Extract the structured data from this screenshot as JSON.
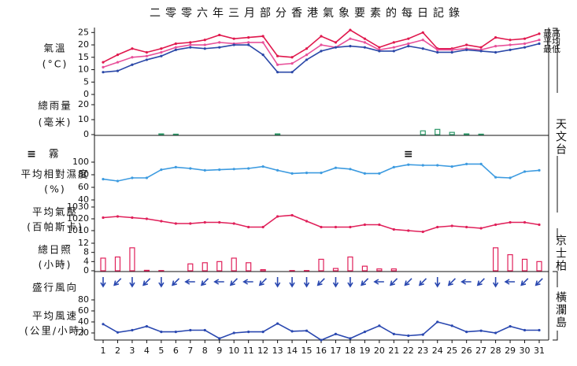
{
  "chart_data": {
    "type": "multi-panel",
    "title": "二零零六年三月部分香港氣象要素的每日記錄",
    "x": [
      1,
      2,
      3,
      4,
      5,
      6,
      7,
      8,
      9,
      10,
      11,
      12,
      13,
      14,
      15,
      16,
      17,
      18,
      19,
      20,
      21,
      22,
      23,
      24,
      25,
      26,
      27,
      28,
      29,
      30,
      31
    ],
    "stations": [
      "天文台",
      "京士柏",
      "橫瀾島"
    ],
    "panels": [
      {
        "type": "line",
        "label": [
          "氣溫",
          "(°C)"
        ],
        "ylim": [
          0,
          27
        ],
        "yticks": [
          0,
          5,
          10,
          15,
          20,
          25
        ],
        "series": [
          {
            "name": "最高",
            "color": "#e0184d",
            "values": [
              13,
              16,
              18.5,
              17,
              18.5,
              20.5,
              21,
              22,
              24,
              22.5,
              23,
              23.5,
              15.5,
              15,
              18.5,
              23.5,
              21,
              26,
              22.5,
              19,
              21,
              22.5,
              25,
              18.5,
              18.5,
              20,
              19,
              23,
              22,
              22.5,
              24.5
            ]
          },
          {
            "name": "平均",
            "color": "#e8509a",
            "values": [
              11,
              13,
              15,
              15.5,
              17,
              19,
              20,
              20,
              21,
              20.5,
              21,
              21,
              12,
              12.5,
              16,
              20,
              19,
              22.5,
              21,
              18,
              19,
              20.5,
              22,
              18,
              18,
              18.5,
              18,
              19.5,
              20,
              20.5,
              22
            ]
          },
          {
            "name": "最低",
            "color": "#2b48a8",
            "values": [
              9,
              9.5,
              12,
              14,
              15.5,
              18,
              19,
              18.5,
              19,
              20,
              20,
              16,
              9,
              9,
              14,
              17.5,
              19,
              19.5,
              19,
              17.5,
              17.5,
              19.5,
              18.5,
              17,
              17,
              18,
              17.5,
              17,
              18,
              19,
              20.5
            ]
          }
        ]
      },
      {
        "type": "bar",
        "label": [
          "總雨量",
          "(毫米)"
        ],
        "ylim": [
          0,
          20
        ],
        "yticks": [
          0,
          10,
          20
        ],
        "color": "#2f9a6a",
        "values": [
          0,
          0,
          0,
          0,
          0.5,
          0.3,
          0,
          0,
          0,
          0,
          0,
          0,
          0.5,
          0,
          0,
          0,
          0,
          0,
          0,
          0,
          0,
          0,
          2.5,
          3.5,
          1.5,
          0.5,
          0.3,
          0,
          0,
          0,
          0
        ]
      },
      {
        "type": "marker",
        "name": "霧",
        "symbol": "≡",
        "x": [
          22
        ]
      },
      {
        "type": "line",
        "label": [
          "平均相對濕度",
          "(%)"
        ],
        "ylim": [
          40,
          100
        ],
        "yticks": [
          40,
          60,
          80,
          100
        ],
        "series": [
          {
            "color": "#3d9be0",
            "values": [
              73,
              70,
              75,
              75,
              88,
              92,
              90,
              87,
              88,
              89,
              90,
              93,
              87,
              82,
              83,
              83,
              91,
              89,
              82,
              82,
              92,
              96,
              95,
              95,
              93,
              97,
              97,
              76,
              75,
              85,
              87
            ]
          }
        ]
      },
      {
        "type": "line",
        "label": [
          "平均氣壓",
          "(百帕斯卡)"
        ],
        "ylim": [
          1005,
          1030
        ],
        "yticks": [
          1010,
          1020,
          1030
        ],
        "series": [
          {
            "color": "#e0205a",
            "values": [
              1021,
              1022,
              1021,
              1020,
              1018,
              1016,
              1016,
              1017,
              1017,
              1016,
              1013,
              1013,
              1022,
              1023,
              1018,
              1013,
              1013,
              1013,
              1015,
              1015,
              1011,
              1010,
              1009,
              1013,
              1014,
              1013,
              1012,
              1015,
              1017,
              1017,
              1015
            ]
          }
        ]
      },
      {
        "type": "bar",
        "label": [
          "總日照",
          "(小時)"
        ],
        "ylim": [
          0,
          12
        ],
        "yticks": [
          0,
          4,
          8,
          12
        ],
        "color": "#e0205a",
        "values": [
          5.5,
          6,
          10,
          0.2,
          0.1,
          0,
          3,
          3.5,
          4,
          5.5,
          3.5,
          0.5,
          0,
          0.1,
          0.1,
          5,
          1,
          6,
          2,
          0.8,
          0.8,
          0,
          0,
          0,
          0,
          0,
          0,
          10,
          7,
          5,
          4
        ]
      },
      {
        "type": "arrow",
        "label": [
          "盛行風向"
        ],
        "color": "#2a48b0",
        "values": [
          0,
          45,
          0,
          45,
          0,
          45,
          90,
          45,
          90,
          45,
          90,
          45,
          0,
          0,
          0,
          45,
          0,
          0,
          45,
          90,
          45,
          45,
          45,
          0,
          45,
          90,
          45,
          0,
          90,
          45,
          45
        ]
      },
      {
        "type": "line",
        "label": [
          "平均風速",
          "(公里/小時)"
        ],
        "ylim": [
          0,
          80
        ],
        "yticks": [
          20,
          40,
          60,
          80
        ],
        "series": [
          {
            "color": "#2a48b0",
            "values": [
              36,
              21,
              25,
              32,
              22,
              22,
              25,
              25,
              10,
              20,
              22,
              22,
              37,
              23,
              24,
              7,
              18,
              10,
              22,
              33,
              18,
              15,
              17,
              40,
              33,
              22,
              24,
              20,
              32,
              25,
              25
            ]
          }
        ]
      }
    ]
  }
}
